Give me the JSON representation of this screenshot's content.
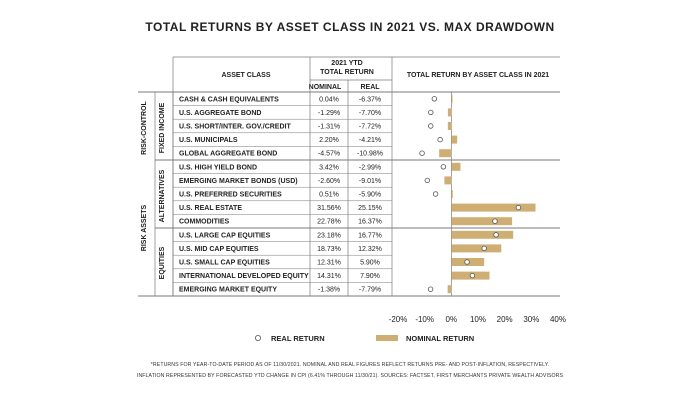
{
  "title": "TOTAL RETURNS BY ASSET CLASS IN 2021 VS. MAX DRAWDOWN",
  "headers": {
    "asset_class": "ASSET CLASS",
    "ytd_line1": "2021 YTD",
    "ytd_line2": "TOTAL RETURN",
    "nominal": "NOMINAL",
    "real": "REAL",
    "chart": "TOTAL RETURN BY ASSET CLASS IN 2021"
  },
  "groups": {
    "risk_control": "RISK-CONTROL",
    "risk_assets": "RISK ASSETS",
    "fixed_income": "FIXED INCOME",
    "alternatives": "ALTERNATIVES",
    "equities": "EQUITIES"
  },
  "legend": {
    "real": "REAL RETURN",
    "nominal": "NOMINAL RETURN"
  },
  "footnote": {
    "line1": "*RETURNS FOR YEAR-TO-DATE PERIOD AS OF 11/30/2021. NOMINAL AND REAL FIGURES REFLECT RETURNS PRE- AND POST-INFLATION, RESPECTIVELY.",
    "line2": "INFLATION REPRESENTED BY FORECASTED YTD CHANGE IN CPI (6.41% THROUGH 11/30/21). SOURCES: FACTSET, FIRST MERCHANTS PRIVATE WEALTH ADVISORS"
  },
  "colors": {
    "bar": "#cfae74",
    "grid": "#7a7a7a",
    "dot_fill": "#ffffff",
    "dot_stroke": "#555555"
  },
  "chart_data": {
    "type": "bar",
    "orientation": "horizontal",
    "categories": [
      "CASH & CASH EQUIVALENTS",
      "U.S. AGGREGATE BOND",
      "U.S. SHORT/INTER. GOV./CREDIT",
      "U.S. MUNICIPALS",
      "GLOBAL AGGREGATE BOND",
      "U.S. HIGH YIELD BOND",
      "EMERGING MARKET BONDS (USD)",
      "U.S. PREFERRED SECURITIES",
      "U.S. REAL ESTATE",
      "COMMODITIES",
      "U.S. LARGE CAP EQUITIES",
      "U.S. MID CAP EQUITIES",
      "U.S. SMALL CAP EQUITIES",
      "INTERNATIONAL DEVELOPED EQUITY",
      "EMERGING MARKET EQUITY"
    ],
    "nominal_labels": [
      "0.04%",
      "-1.29%",
      "-1.31%",
      "2.20%",
      "-4.57%",
      "3.42%",
      "-2.60%",
      "0.51%",
      "31.56%",
      "22.78%",
      "23.18%",
      "18.73%",
      "12.31%",
      "14.31%",
      "-1.38%"
    ],
    "real_labels": [
      "-6.37%",
      "-7.70%",
      "-7.72%",
      "-4.21%",
      "-10.98%",
      "-2.99%",
      "-9.01%",
      "-5.90%",
      "25.15%",
      "16.37%",
      "16.77%",
      "12.32%",
      "5.90%",
      "7.90%",
      "-7.79%"
    ],
    "series": [
      {
        "name": "NOMINAL RETURN",
        "values": [
          0.04,
          -1.29,
          -1.31,
          2.2,
          -4.57,
          3.42,
          -2.6,
          0.51,
          31.56,
          22.78,
          23.18,
          18.73,
          12.31,
          14.31,
          -1.38
        ]
      },
      {
        "name": "REAL RETURN",
        "values": [
          -6.37,
          -7.7,
          -7.72,
          -4.21,
          -10.98,
          -2.99,
          -9.01,
          -5.9,
          25.15,
          16.37,
          16.77,
          12.32,
          5.9,
          7.9,
          -7.79
        ]
      }
    ],
    "xlim": [
      -20,
      40
    ],
    "xticks": [
      -20,
      -10,
      0,
      10,
      20,
      30,
      40
    ],
    "xtick_labels": [
      "-20%",
      "-10%",
      "0%",
      "10%",
      "20%",
      "30%",
      "40%"
    ],
    "legend_position": "bottom"
  }
}
